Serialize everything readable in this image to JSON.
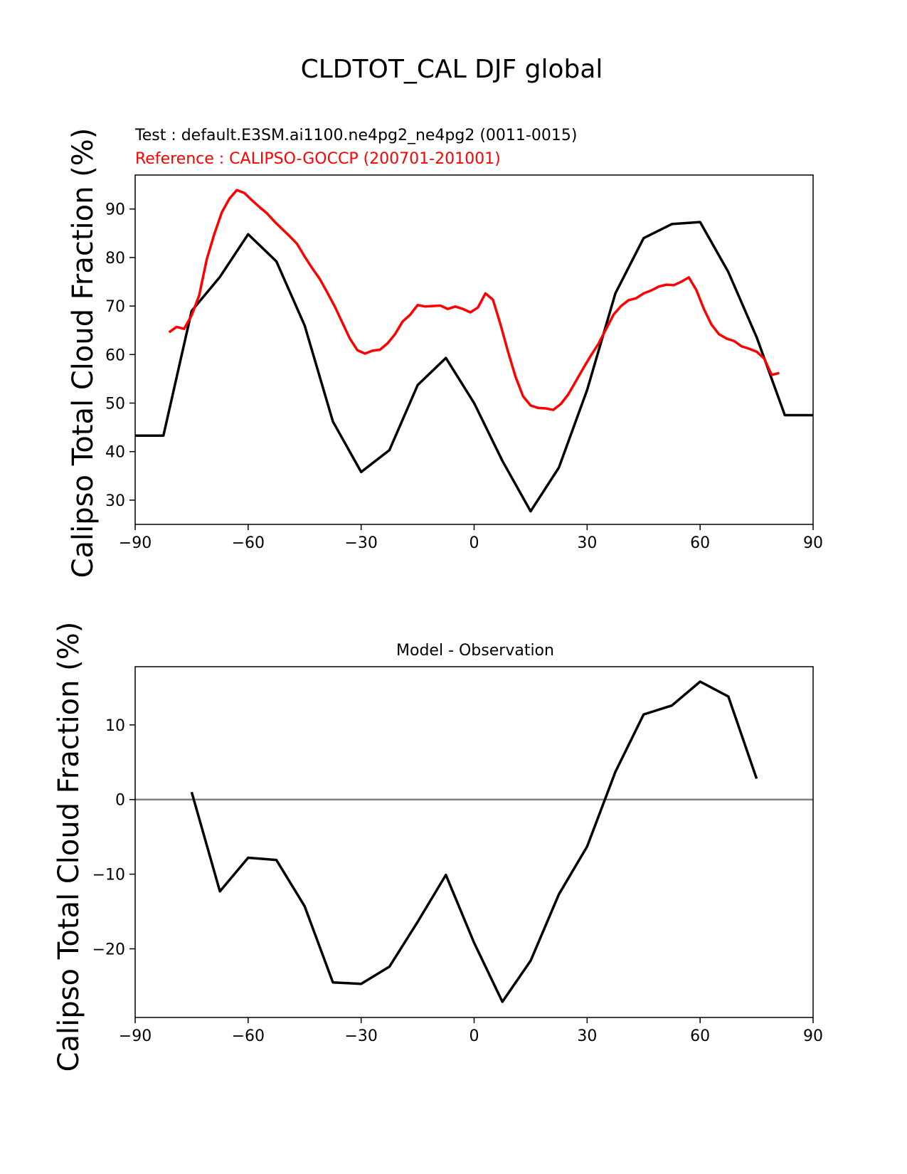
{
  "figure": {
    "title": "CLDTOT_CAL DJF global"
  },
  "colors": {
    "test": "#000000",
    "reference": "#ff0000",
    "zero_line": "#808080"
  },
  "chart_data": [
    {
      "type": "line",
      "test_label": "Test : default.E3SM.ai1100.ne4pg2_ne4pg2 (0011-0015)",
      "reference_label": "Reference : CALIPSO-GOCCP (200701-201001)",
      "ylabel": "Calipso Total Cloud Fraction (%)",
      "xlim": [
        -90,
        90
      ],
      "ylim": [
        25,
        97
      ],
      "xticks": [
        -90,
        -60,
        -30,
        0,
        30,
        60,
        90
      ],
      "yticks": [
        30,
        40,
        50,
        60,
        70,
        80,
        90
      ],
      "series": [
        {
          "role": "test",
          "x": [
            -90,
            -82.5,
            -75,
            -67.5,
            -60,
            -52.5,
            -45,
            -37.5,
            -30,
            -22.5,
            -15,
            -7.5,
            0,
            7.5,
            15,
            22.5,
            30,
            37.5,
            45,
            52.5,
            60,
            67.5,
            75,
            82.5,
            90
          ],
          "y": [
            43.3,
            43.3,
            69.0,
            76.0,
            84.8,
            79.2,
            66.0,
            46.2,
            35.8,
            40.3,
            53.7,
            59.3,
            50.0,
            38.1,
            27.7,
            36.7,
            52.7,
            72.6,
            84.0,
            86.9,
            87.3,
            77.0,
            63.6,
            47.5,
            47.5
          ]
        },
        {
          "role": "reference",
          "x": [
            -81,
            -79,
            -77,
            -75,
            -73,
            -71,
            -69,
            -67,
            -65,
            -63,
            -61,
            -59,
            -57,
            -55,
            -53,
            -51,
            -49,
            -47,
            -45,
            -43,
            -41,
            -39,
            -37,
            -35,
            -33,
            -31,
            -29,
            -27,
            -25,
            -23,
            -21,
            -19,
            -17,
            -15,
            -13,
            -11,
            -9,
            -7,
            -5,
            -3,
            -1,
            1,
            3,
            5,
            7,
            9,
            11,
            13,
            15,
            17,
            19,
            21,
            23,
            25,
            27,
            29,
            31,
            33,
            35,
            37,
            39,
            41,
            43,
            45,
            47,
            49,
            51,
            53,
            55,
            57,
            59,
            61,
            63,
            65,
            67,
            69,
            71,
            73,
            75,
            77,
            79,
            81
          ],
          "y": [
            64.6,
            65.7,
            65.3,
            68.1,
            72.2,
            79.6,
            84.8,
            89.3,
            92.1,
            93.9,
            93.3,
            91.8,
            90.4,
            89.1,
            87.4,
            85.9,
            84.4,
            82.8,
            80.2,
            77.8,
            75.6,
            72.8,
            69.9,
            66.6,
            63.3,
            60.9,
            60.2,
            60.8,
            61.0,
            62.3,
            64.2,
            66.8,
            68.2,
            70.2,
            69.9,
            70.0,
            70.1,
            69.4,
            69.9,
            69.4,
            68.7,
            69.7,
            72.6,
            71.3,
            66.2,
            60.6,
            55.4,
            51.4,
            49.5,
            49.0,
            48.9,
            48.6,
            49.8,
            51.8,
            54.5,
            57.2,
            59.8,
            62.2,
            65.2,
            68.2,
            70.0,
            71.2,
            71.6,
            72.6,
            73.2,
            74.0,
            74.4,
            74.3,
            75.0,
            75.9,
            73.3,
            69.4,
            66.2,
            64.2,
            63.3,
            62.8,
            61.7,
            61.2,
            60.6,
            59.2,
            55.8,
            56.2
          ]
        }
      ]
    },
    {
      "type": "line",
      "title": "Model - Observation",
      "ylabel": "Calipso Total Cloud Fraction (%)",
      "xlim": [
        -90,
        90
      ],
      "ylim": [
        -29.2,
        17.8
      ],
      "xticks": [
        -90,
        -60,
        -30,
        0,
        30,
        60,
        90
      ],
      "yticks": [
        -20,
        -10,
        0,
        10
      ],
      "zero_line": true,
      "series": [
        {
          "role": "difference",
          "x": [
            -75,
            -67.5,
            -60,
            -52.5,
            -45,
            -37.5,
            -30,
            -22.5,
            -15,
            -7.5,
            0,
            7.5,
            15,
            22.5,
            30,
            37.5,
            45,
            52.5,
            60,
            67.5,
            75
          ],
          "y": [
            1.0,
            -12.3,
            -7.8,
            -8.1,
            -14.3,
            -24.5,
            -24.7,
            -22.4,
            -16.4,
            -10.1,
            -19.2,
            -27.1,
            -21.6,
            -12.7,
            -6.3,
            3.7,
            11.4,
            12.6,
            15.8,
            13.8,
            2.8
          ]
        }
      ]
    }
  ]
}
